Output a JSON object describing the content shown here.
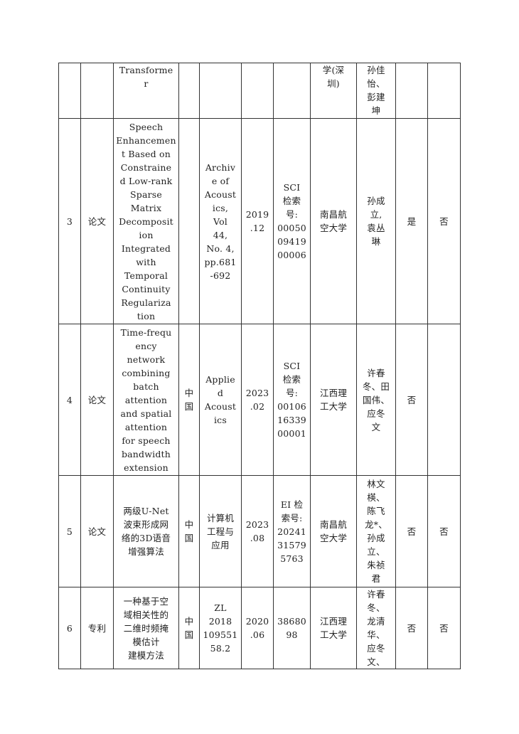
{
  "rows": [
    {
      "no": "",
      "type": "",
      "title": "Transforme\nr",
      "country": "",
      "journal": "",
      "date": "",
      "index": "",
      "org": "学(深\n圳)",
      "authors": "孙佳\n怡、\n彭建\n坤",
      "c10": "",
      "c11": ""
    },
    {
      "no": "3",
      "type": "论文",
      "title": "Speech\nEnhancemen\nt Based on\nConstraine\nd Low-rank\nSparse\nMatrix\nDecomposit\nion\nIntegrated\nwith\nTemporal\nContinuity\nRegulariza\ntion",
      "country": "",
      "journal": "Archiv\ne of\nAcoust\nics,\nVol\n44,\nNo. 4,\npp.681\n-692",
      "date": "2019\n.12",
      "index": "SCI\n检索\n号:\n00050\n09419\n00006",
      "org": "南昌航\n空大学",
      "authors": "孙成\n立,\n袁丛\n琳",
      "c10": "是",
      "c11": "否"
    },
    {
      "no": "4",
      "type": "论文",
      "title": "Time-frequ\nency\nnetwork\ncombining\nbatch\nattention\nand spatial\nattention\nfor speech\nbandwidth\nextension",
      "country": "中\n国",
      "journal": "Applie\nd\nAcoust\nics",
      "date": "2023\n.02",
      "index": "SCI\n检索\n号:\n00106\n16339\n00001",
      "org": "江西理\n工大学",
      "authors": "许春\n冬、田\n国伟、\n应冬\n文",
      "c10": "否",
      "c11": ""
    },
    {
      "no": "5",
      "type": "论文",
      "title": "两级U-Net\n波束形成网\n络的3D语音\n增强算法",
      "country": "中\n国",
      "journal": "计算机\n工程与\n应用",
      "date": "2023\n.08",
      "index": "EI 检\n索号:\n20241\n31579\n5763",
      "org": "南昌航\n空大学",
      "authors": "林文\n楧、\n陈飞\n龙*、\n孙成\n立、\n朱祯\n君",
      "c10": "否",
      "c11": "否"
    },
    {
      "no": "6",
      "type": "专利",
      "title": "一种基于空\n域相关性的\n二维时频掩\n模估计\n建模方法",
      "country": "中\n国",
      "journal": "ZL\n2018\n109551\n58.2",
      "date": "2020\n.06",
      "index": "38680\n98",
      "org": "江西理\n工大学",
      "authors": "许春\n冬、\n龙清\n华、\n应冬\n文、",
      "c10": "否",
      "c11": "否"
    }
  ]
}
